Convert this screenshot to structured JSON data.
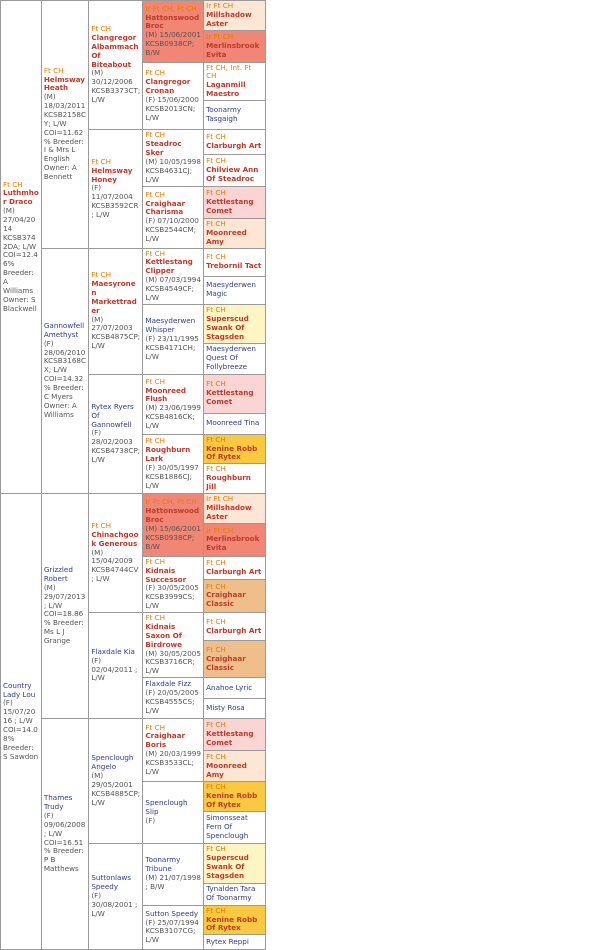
{
  "pedigree": {
    "gen1": [
      {
        "title": "Ft CH",
        "name": "Luthmhor Draco",
        "details": "(M) 27/04/2014 KCSB3742DA; L/W COI=12.46% Breeder: A Williams Owner: S Blackwell"
      },
      {
        "title": "",
        "name": "Country Lady Lou",
        "details": "(F) 15/07/2016 ; L/W COI=14.08% Breeder: S Sawdon"
      }
    ],
    "gen2": [
      {
        "title": "Ft CH",
        "name": "Helmsway Heath",
        "details": "(M) 18/03/2011 KCSB2158CY; L/W COI=11.62% Breeder: I & Mrs L English Owner: A Bennett"
      },
      {
        "title": "",
        "name": "Gannowfell Amethyst",
        "details": "(F) 28/06/2010 KCSB3168CX; L/W COI=14.32% Breeder: C Myers Owner: A Williams"
      },
      {
        "title": "",
        "name": "Grizzled Robert",
        "details": "(M) 29/07/2013 ; L/W COI=18.86% Breeder: Ms L J Grange"
      },
      {
        "title": "",
        "name": "Thames Trudy",
        "details": "(F) 09/06/2008 ; L/W COI=16.51% Breeder: P B Matthews"
      }
    ],
    "gen3": [
      {
        "title": "Ft CH",
        "name": "Clangregor Albammach Of Biteabout",
        "details": "(M) 30/12/2006 KCSB3373CT; L/W"
      },
      {
        "title": "Ft CH",
        "name": "Helmsway Honey",
        "details": "(F) 11/07/2004 KCSB3592CR; L/W"
      },
      {
        "title": "Ft CH",
        "name": "Maesyronen Markettrader",
        "details": "(M) 27/07/2003 KCSB4875CP; L/W"
      },
      {
        "title": "",
        "name": "Rytex Ryers Of Gannowfell",
        "details": "(F) 28/02/2003 KCSB4738CP; L/W"
      },
      {
        "title": "Ft CH",
        "name": "Chinachgook Generous",
        "details": "(M) 15/04/2009 KCSB4744CV; L/W"
      },
      {
        "title": "",
        "name": "Flaxdale Kia",
        "details": "(F) 02/04/2011 ; L/W"
      },
      {
        "title": "",
        "name": "Spenclough Angelo",
        "details": "(M) 29/05/2001 KCSB4885CP; L/W"
      },
      {
        "title": "",
        "name": "Suttonlaws Speedy",
        "details": "(F) 30/08/2001 ; L/W"
      }
    ],
    "gen4": [
      {
        "title": "Ir Ft CH, Ft CH",
        "name": "Hattonswood Broc",
        "details": "(M) 15/06/2001 KCSB0938CP; B/W"
      },
      {
        "title": "Ft CH",
        "name": "Clangregor Cronan",
        "details": "(F) 15/06/2000 KCSB2013CN; L/W"
      },
      {
        "title": "Ft CH",
        "name": "Steadroc Sker",
        "details": "(M) 10/05/1998 KCSB4631CJ; L/W"
      },
      {
        "title": "Ft CH",
        "name": "Craighaar Charisma",
        "details": "(F) 07/10/2000 KCSB2544CM; L/W"
      },
      {
        "title": "Ft CH",
        "name": "Kettlestang Clipper",
        "details": "(M) 07/03/1994 KCSB4549CF; L/W"
      },
      {
        "title": "",
        "name": "Maesyderwen Whisper",
        "details": "(F) 23/11/1995 KCSB4171CH; L/W"
      },
      {
        "title": "Ft CH",
        "name": "Moonreed Flush",
        "details": "(M) 23/06/1999 KCSB4816CK; L/W"
      },
      {
        "title": "Ft CH",
        "name": "Roughburn Lark",
        "details": "(F) 30/05/1997 KCSB1886CJ; L/W"
      },
      {
        "title": "Ir Ft CH, Ft CH",
        "name": "Hattonswood Broc",
        "details": "(M) 15/06/2001 KCSB0938CP; B/W"
      },
      {
        "title": "Ft CH",
        "name": "Kidnais Successor",
        "details": "(F) 30/05/2005 KCSB3999CS; L/W"
      },
      {
        "title": "Ft CH",
        "name": "Kidnais Saxon Of Birdrowe",
        "details": "(M) 30/05/2005 KCSB3716CR; L/W"
      },
      {
        "title": "",
        "name": "Flaxdale Fizz",
        "details": "(F) 20/05/2005 KCSB4555CS; L/W"
      },
      {
        "title": "Ft CH",
        "name": "Craighaar Boris",
        "details": "(M) 20/03/1999 KCSB3533CL; L/W"
      },
      {
        "title": "",
        "name": "Spenclough Slip",
        "details": "(F)"
      },
      {
        "title": "",
        "name": "Toonarmy Tribune",
        "details": "(M) 21/07/1998 ; B/W"
      },
      {
        "title": "",
        "name": "Sutton Speedy",
        "details": "(F) 25/07/1994 KCSB3107CG; L/W"
      }
    ],
    "gen5": [
      {
        "title": "Ir Ft CH",
        "name": "Millshadow Aster"
      },
      {
        "title": "Ir Ft CH",
        "name": "Merlinsbrook Evita"
      },
      {
        "title": "Ft CH, Int. Ft CH",
        "name": "Laganmill Maestro"
      },
      {
        "title": "",
        "name": "Toonarmy Tasgaigh"
      },
      {
        "title": "Ft CH",
        "name": "Clarburgh Art"
      },
      {
        "title": "Ft CH",
        "name": "Chilview Ann Of Steadroc"
      },
      {
        "title": "Ft CH",
        "name": "Kettlestang Comet"
      },
      {
        "title": "Ft CH",
        "name": "Moonreed Amy"
      },
      {
        "title": "Ft CH",
        "name": "Trebornil Tact"
      },
      {
        "title": "",
        "name": "Maesyderwen Magic"
      },
      {
        "title": "Ft CH",
        "name": "Superscud Swank Of Stagsden"
      },
      {
        "title": "",
        "name": "Maesyderwen Quest Of Follybreeze"
      },
      {
        "title": "Ft CH",
        "name": "Kettlestang Comet"
      },
      {
        "title": "",
        "name": "Moonreed Tina"
      },
      {
        "title": "Ft CH",
        "name": "Kenine Robb Of Rytex"
      },
      {
        "title": "Ft CH",
        "name": "Roughburn Jill"
      },
      {
        "title": "Ir Ft CH",
        "name": "Millshadow Aster"
      },
      {
        "title": "Ir Ft CH",
        "name": "Merlinsbrook Evita"
      },
      {
        "title": "Ft CH",
        "name": "Clarburgh Art"
      },
      {
        "title": "Ft CH",
        "name": "Craighaar Classic"
      },
      {
        "title": "Ft CH",
        "name": "Clarburgh Art"
      },
      {
        "title": "Ft CH",
        "name": "Craighaar Classic"
      },
      {
        "title": "",
        "name": "Anahoe Lyric"
      },
      {
        "title": "",
        "name": "Misty Rosa"
      },
      {
        "title": "Ft CH",
        "name": "Kettlestang Comet"
      },
      {
        "title": "Ft CH",
        "name": "Moonreed Amy"
      },
      {
        "title": "Ft CH",
        "name": "Kenine Robb Of Rytex"
      },
      {
        "title": "",
        "name": "Simonsseat Fern Of Spenclough"
      },
      {
        "title": "Ft CH",
        "name": "Superscud Swank Of Stagsden"
      },
      {
        "title": "",
        "name": "Tynalden Tara Of Toonarmy"
      },
      {
        "title": "Ft CH",
        "name": "Kenine Robb Of Rytex"
      },
      {
        "title": "",
        "name": "Rytex Reppi"
      }
    ]
  },
  "colors": {
    "male_name": "#c0392b",
    "female_name": "#2e3d8f",
    "title": "#e67e00"
  }
}
